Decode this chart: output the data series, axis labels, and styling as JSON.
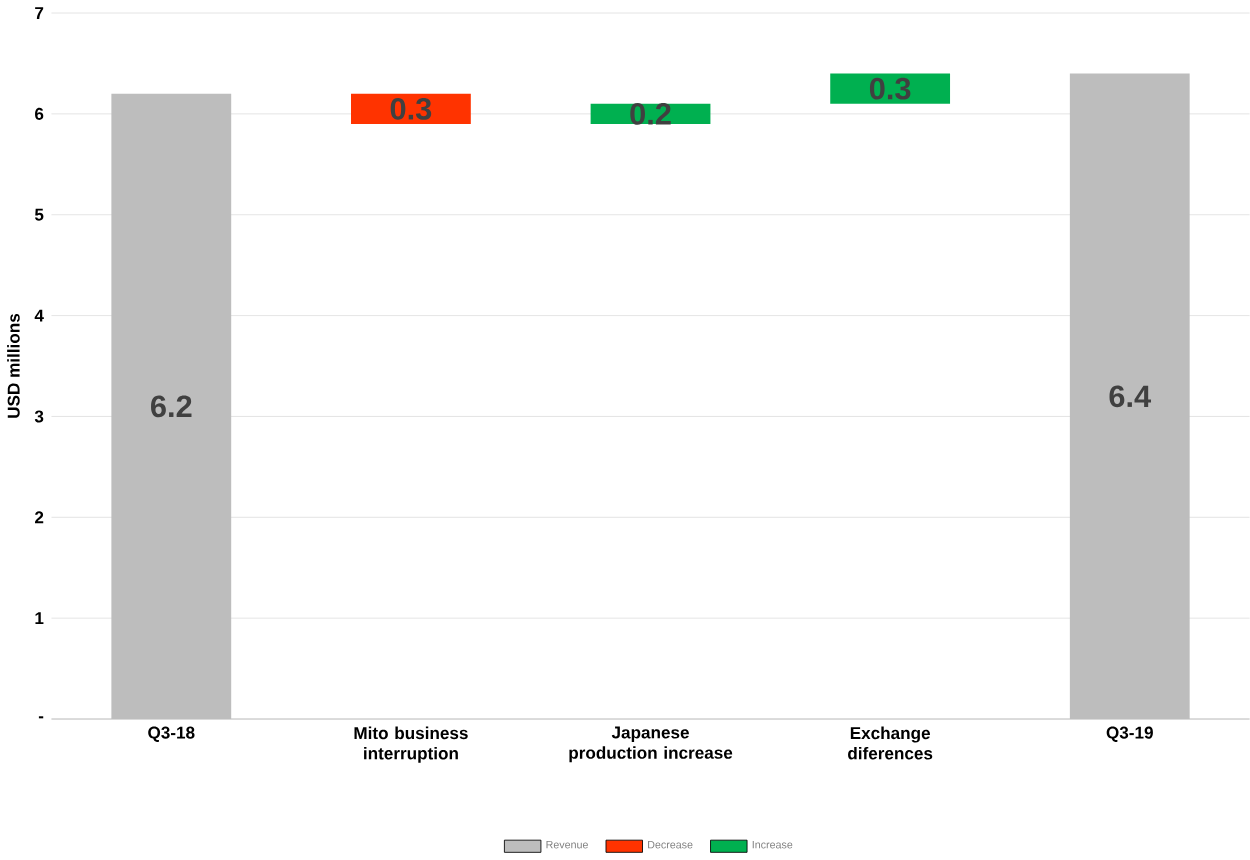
{
  "chart_data": {
    "type": "bar",
    "ylabel": "USD millions",
    "categories": [
      "Q3-18",
      "Mito business interruption",
      "Japanese production increase",
      "Exchange diferences",
      "Q3-19"
    ],
    "series": [
      {
        "name": "Revenue",
        "color": "#bdbdbd",
        "values": [
          6.2,
          null,
          null,
          null,
          6.4
        ],
        "base": [
          0,
          null,
          null,
          null,
          0
        ]
      },
      {
        "name": "Decrease",
        "color": "#ff3300",
        "values": [
          null,
          0.3,
          null,
          null,
          null
        ],
        "base": [
          null,
          5.9,
          null,
          null,
          null
        ]
      },
      {
        "name": "Increase",
        "color": "#00b050",
        "values": [
          null,
          null,
          0.2,
          0.3,
          null
        ],
        "base": [
          null,
          null,
          5.9,
          6.1,
          null
        ]
      }
    ],
    "ylim": [
      0,
      7
    ],
    "yticks": [
      {
        "value": 0,
        "label": "-"
      },
      1,
      2,
      3,
      4,
      5,
      6,
      7
    ],
    "grid": "y",
    "legend": "bottom",
    "data_labels": true
  }
}
